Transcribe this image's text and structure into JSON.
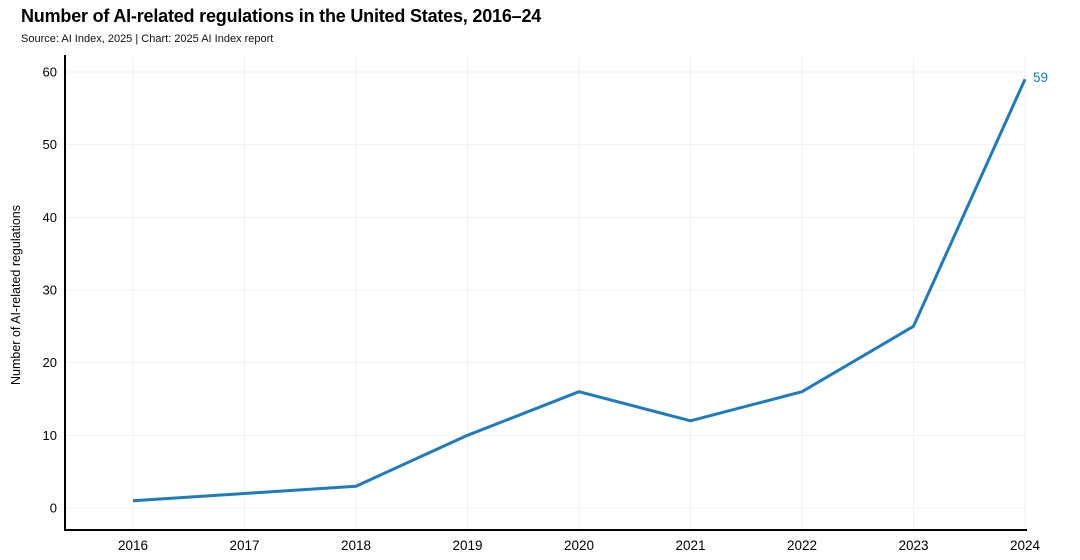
{
  "header": {
    "title": "Number of AI-related regulations in the United States, 2016–24",
    "source_line": "Source: AI Index, 2025 | Chart: 2025 AI Index report"
  },
  "chart_data": {
    "type": "line",
    "title": "Number of AI-related regulations in the United States, 2016–24",
    "subtitle": "Source: AI Index, 2025 | Chart: 2025 AI Index report",
    "categories": [
      "2016",
      "2017",
      "2018",
      "2019",
      "2020",
      "2021",
      "2022",
      "2023",
      "2024"
    ],
    "series": [
      {
        "name": "Number of AI-related regulations",
        "values": [
          1,
          2,
          3,
          10,
          16,
          12,
          16,
          25,
          59
        ]
      }
    ],
    "xlabel": "",
    "ylabel": "Number of AI-related regulations",
    "ylim": [
      0,
      60
    ],
    "yticks": [
      0,
      10,
      20,
      30,
      40,
      50,
      60
    ],
    "grid": true,
    "legend_position": "none",
    "line_color": "#1e7bbe",
    "grid_color": "#f1f1f1",
    "axis_color": "#000000",
    "end_label": {
      "text": "59",
      "year": "2024",
      "value": 59,
      "color": "#1e7bbe"
    }
  }
}
